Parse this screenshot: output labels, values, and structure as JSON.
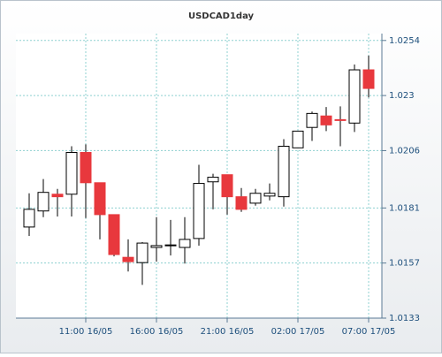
{
  "chart_data": {
    "type": "candlestick",
    "title": "USDCAD1day",
    "categories": [
      null,
      null,
      null,
      null,
      "11:00 16/05",
      null,
      null,
      null,
      null,
      "16:00 16/05",
      null,
      null,
      null,
      null,
      "21:00 16/05",
      null,
      null,
      null,
      null,
      "02:00 17/05",
      null,
      null,
      null,
      null,
      "07:00 17/05"
    ],
    "open": [
      1.01727,
      1.01797,
      1.0187,
      1.0187,
      1.02052,
      1.0192,
      1.01781,
      1.01595,
      1.01572,
      1.01638,
      1.01646,
      1.01638,
      1.01677,
      1.01924,
      1.01955,
      1.01859,
      1.01831,
      1.01862,
      1.01859,
      1.02072,
      1.02161,
      1.02211,
      1.02195,
      1.0218,
      1.02412
    ],
    "high": [
      1.01874,
      1.01936,
      1.01893,
      1.02079,
      1.02087,
      1.0192,
      1.01781,
      1.01673,
      1.01661,
      1.0177,
      1.01758,
      1.0177,
      1.01998,
      1.01959,
      1.01955,
      1.01897,
      1.01893,
      1.01917,
      1.0211,
      1.02145,
      1.0223,
      1.0225,
      1.02253,
      1.02435,
      1.02474
    ],
    "low": [
      1.01688,
      1.0177,
      1.01773,
      1.01773,
      1.01766,
      1.01673,
      1.01599,
      1.01533,
      1.01475,
      1.01576,
      1.01603,
      1.01568,
      1.01646,
      1.01804,
      1.01781,
      1.01793,
      1.0182,
      1.01843,
      1.01816,
      1.02072,
      1.02102,
      1.02145,
      1.02079,
      1.02141,
      1.02292
    ],
    "close": [
      1.01804,
      1.01878,
      1.01859,
      1.02052,
      1.0192,
      1.01781,
      1.01607,
      1.01576,
      1.01657,
      1.01646,
      1.01649,
      1.01673,
      1.01917,
      1.01944,
      1.01859,
      1.01804,
      1.01874,
      1.01874,
      1.02079,
      1.02145,
      1.02222,
      1.02172,
      1.02192,
      1.02412,
      1.02331
    ],
    "up_color": "#ffffff",
    "down_color": "#e8383d",
    "ylim": [
      1.0133,
      1.0257
    ],
    "yticks": [
      1.0133,
      1.0157,
      1.0181,
      1.0206,
      1.023,
      1.0254
    ],
    "grid": true
  }
}
